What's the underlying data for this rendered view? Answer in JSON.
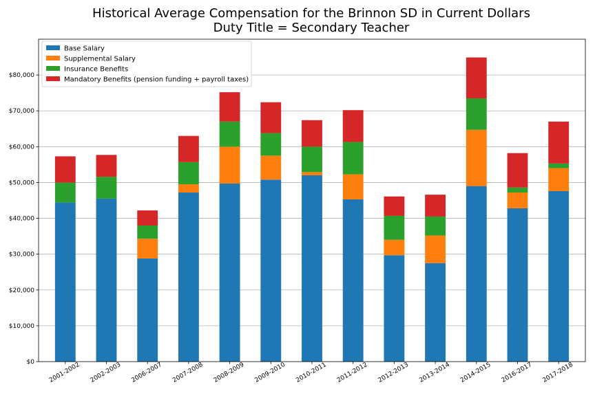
{
  "chart_data": {
    "type": "bar",
    "stacked": true,
    "title": "Historical Average Compensation for the Brinnon SD in Current Dollars",
    "subtitle": "Duty Title = Secondary Teacher",
    "xlabel": "",
    "ylabel": "",
    "ylim": [
      0,
      90000
    ],
    "yticks": [
      0,
      10000,
      20000,
      30000,
      40000,
      50000,
      60000,
      70000,
      80000
    ],
    "ytick_labels": [
      "$0",
      "$10,000",
      "$20,000",
      "$30,000",
      "$40,000",
      "$50,000",
      "$60,000",
      "$70,000",
      "$80,000"
    ],
    "grid": "horizontal",
    "legend_position": "top-left",
    "categories": [
      "2001-2002",
      "2002-2003",
      "2006-2007",
      "2007-2008",
      "2008-2009",
      "2009-2010",
      "2010-2011",
      "2011-2012",
      "2012-2013",
      "2013-2014",
      "2014-2015",
      "2016-2017",
      "2017-2018"
    ],
    "series": [
      {
        "name": "Base Salary",
        "color": "#1f77b4",
        "values": [
          44400,
          45500,
          28800,
          47200,
          49700,
          50800,
          52000,
          45300,
          29700,
          27500,
          49000,
          42800,
          47600
        ]
      },
      {
        "name": "Supplemental Salary",
        "color": "#ff7f0e",
        "values": [
          0,
          0,
          5500,
          2300,
          10300,
          6700,
          900,
          7000,
          4300,
          7700,
          15700,
          4400,
          6400
        ]
      },
      {
        "name": "Insurance Benefits",
        "color": "#2ca02c",
        "values": [
          5600,
          6100,
          3700,
          6200,
          7000,
          6300,
          7100,
          9000,
          6700,
          5300,
          8800,
          1400,
          1300
        ]
      },
      {
        "name": "Mandatory Benefits (pension funding + payroll taxes)",
        "color": "#d62728",
        "values": [
          7300,
          6100,
          4200,
          7300,
          8200,
          8600,
          7400,
          8900,
          5400,
          6100,
          11400,
          9600,
          11700
        ]
      }
    ]
  }
}
